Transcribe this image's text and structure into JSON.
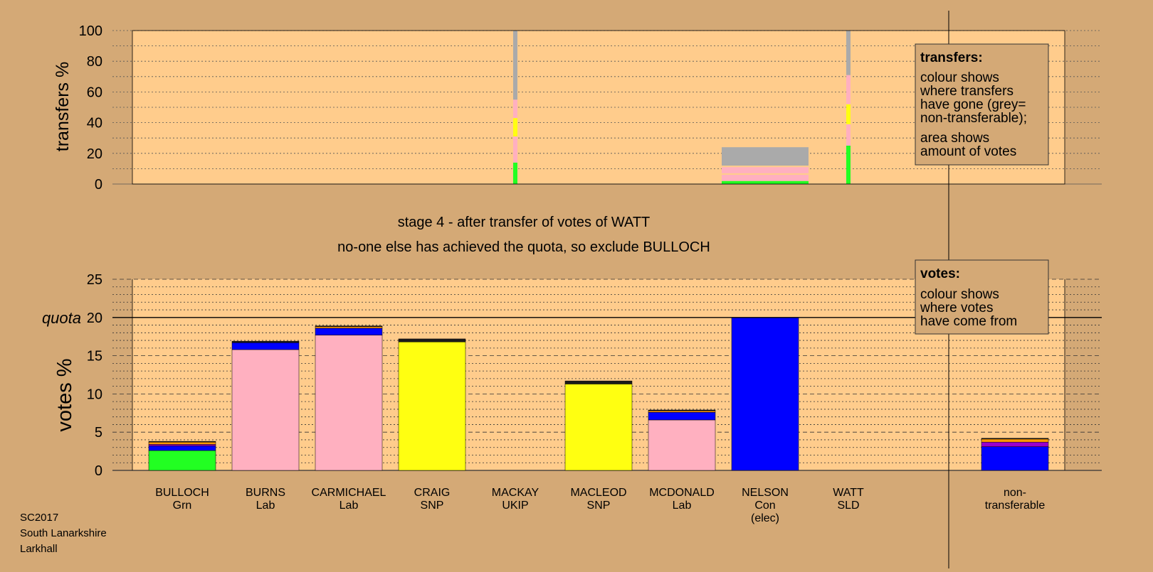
{
  "info": {
    "election": "SC2017",
    "council": "South Lanarkshire",
    "ward": "Larkhall"
  },
  "stage_title": "stage 4 - after transfer of votes of WATT",
  "stage_subtitle": "no-one else has achieved the quota, so exclude BULLOCH",
  "legend_transfers": {
    "heading": "transfers:",
    "text1": [
      "colour shows",
      "where transfers",
      "have gone (grey=",
      "non-transferable);"
    ],
    "text2": [
      "area shows",
      "amount of votes"
    ]
  },
  "legend_votes": {
    "heading": "votes:",
    "text": [
      "colour shows",
      "where votes",
      "have come from"
    ]
  },
  "colors": {
    "background": "#d4a976",
    "plot_bg": "#ffcc8c",
    "grn": "#22ff22",
    "lab": "#ffb0c0",
    "snp": "#ffff11",
    "con": "#0000ff",
    "ukip": "#9900cc",
    "sld": "#ff9900",
    "nontransferable": "#aaaaaa",
    "dark": "#1a1a1a"
  },
  "chart_data": [
    {
      "type": "bar",
      "title": "",
      "xlabel": "",
      "ylabel": "transfers %",
      "ylim": [
        0,
        100
      ],
      "yticks": [
        "0",
        "20",
        "40",
        "60",
        "80",
        "100"
      ],
      "transfers": [
        {
          "from": "MACKAY",
          "share_of_total": 0.2,
          "segments": [
            {
              "party": "grn",
              "from": 0,
              "to": 14
            },
            {
              "party": "lab",
              "from": 14,
              "to": 31
            },
            {
              "party": "snp",
              "from": 31,
              "to": 43
            },
            {
              "party": "lab",
              "from": 43,
              "to": 55
            },
            {
              "party": "nontransferable",
              "from": 55,
              "to": 100
            }
          ]
        },
        {
          "from": "NELSON",
          "share_of_total": 24,
          "segments": [
            {
              "party": "grn",
              "from": 0,
              "to": 2
            },
            {
              "party": "lab",
              "from": 2,
              "to": 6
            },
            {
              "party": "lab",
              "from": 7,
              "to": 11
            },
            {
              "party": "nontransferable",
              "from": 12,
              "to": 24
            }
          ]
        },
        {
          "from": "WATT",
          "share_of_total": 0.2,
          "segments": [
            {
              "party": "grn",
              "from": 0,
              "to": 25
            },
            {
              "party": "lab",
              "from": 25,
              "to": 39
            },
            {
              "party": "snp",
              "from": 39,
              "to": 52
            },
            {
              "party": "lab",
              "from": 52,
              "to": 71
            },
            {
              "party": "nontransferable",
              "from": 71,
              "to": 100
            }
          ]
        }
      ]
    },
    {
      "type": "bar",
      "title": "",
      "xlabel": "",
      "ylabel": "votes %",
      "ylim": [
        0,
        25
      ],
      "yticks": [
        "0",
        "5",
        "10",
        "15",
        "20",
        "25"
      ],
      "quota": 20,
      "quota_label": "quota",
      "candidates": [
        {
          "name": "BULLOCH",
          "party": "Grn",
          "extra": "",
          "segments": [
            {
              "c": "grn",
              "v": 2.6
            },
            {
              "c": "con",
              "v": 0.6
            },
            {
              "c": "ukip",
              "v": 0.2
            },
            {
              "c": "sld",
              "v": 0.3
            },
            {
              "c": "dark",
              "v": 0.1
            }
          ]
        },
        {
          "name": "BURNS",
          "party": "Lab",
          "extra": "",
          "segments": [
            {
              "c": "lab",
              "v": 15.8
            },
            {
              "c": "con",
              "v": 0.9
            },
            {
              "c": "dark",
              "v": 0.2
            }
          ]
        },
        {
          "name": "CARMICHAEL",
          "party": "Lab",
          "extra": "",
          "segments": [
            {
              "c": "lab",
              "v": 17.7
            },
            {
              "c": "con",
              "v": 0.9
            },
            {
              "c": "sld",
              "v": 0.2
            },
            {
              "c": "dark",
              "v": 0.1
            }
          ]
        },
        {
          "name": "CRAIG",
          "party": "SNP",
          "extra": "",
          "segments": [
            {
              "c": "snp",
              "v": 16.8
            },
            {
              "c": "dark",
              "v": 0.4
            }
          ]
        },
        {
          "name": "MACKAY",
          "party": "UKIP",
          "extra": "",
          "segments": []
        },
        {
          "name": "MACLEOD",
          "party": "SNP",
          "extra": "",
          "segments": [
            {
              "c": "snp",
              "v": 11.3
            },
            {
              "c": "dark",
              "v": 0.4
            }
          ]
        },
        {
          "name": "MCDONALD",
          "party": "Lab",
          "extra": "",
          "segments": [
            {
              "c": "lab",
              "v": 6.6
            },
            {
              "c": "con",
              "v": 1.0
            },
            {
              "c": "sld",
              "v": 0.2
            },
            {
              "c": "dark",
              "v": 0.1
            }
          ]
        },
        {
          "name": "NELSON",
          "party": "Con",
          "extra": "(elec)",
          "segments": [
            {
              "c": "con",
              "v": 20.0
            }
          ]
        },
        {
          "name": "WATT",
          "party": "SLD",
          "extra": "",
          "segments": []
        }
      ],
      "nontransferable": {
        "label1": "non-",
        "label2": "transferable",
        "segments": [
          {
            "c": "con",
            "v": 3.1
          },
          {
            "c": "ukip",
            "v": 0.6
          },
          {
            "c": "sld",
            "v": 0.4
          },
          {
            "c": "dark",
            "v": 0.1
          }
        ]
      }
    }
  ]
}
